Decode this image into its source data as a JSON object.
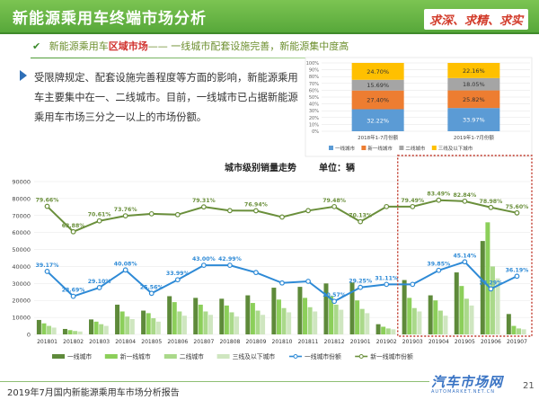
{
  "header": {
    "title": "新能源乘用车终端市场分析",
    "slogan": "求深、求精、求实"
  },
  "subtitle": {
    "part_a": "新能源乘用车",
    "part_b": "区域市场",
    "part_c": "—— 一线城市配套设施完善，新能源集中度高"
  },
  "bullet": {
    "text": "受限牌规定、配套设施完善程度等方面的影响，新能源乘用车主要集中在一、二线城市。目前，一线城市已占据新能源乘用车市场三分之一以上的市场份额。"
  },
  "footer": {
    "report": "2019年7月国内新能源乘用车市场分析报告",
    "logo": "汽车市场网",
    "logo_sub": "AUTOMARKET.NET.CN",
    "page": "21"
  },
  "colors": {
    "tier1": "#5e8a3a",
    "new_tier1": "#8ccf5a",
    "tier2": "#aad98a",
    "tier3": "#cfe6c0",
    "share_tier1": "#2e8ad6",
    "share_new": "#6a8f3b",
    "mini_tier1": "#5b9bd5",
    "mini_new": "#ed7d31",
    "mini_tier2": "#a5a5a5",
    "mini_tier3": "#ffc000",
    "highlight": "#c0392b"
  },
  "chart_data": [
    {
      "type": "bar",
      "stacked": true,
      "percent": true,
      "categories": [
        "2018年1-7月份额",
        "2019年1-7月份额"
      ],
      "ylim": [
        0,
        100
      ],
      "yticks": [
        "0%",
        "10%",
        "20%",
        "30%",
        "40%",
        "50%",
        "60%",
        "70%",
        "80%",
        "90%",
        "100%"
      ],
      "series": [
        {
          "name": "一线城市",
          "values": [
            32.22,
            33.97
          ],
          "labels": [
            "32.22%",
            "33.97%"
          ]
        },
        {
          "name": "新一线城市",
          "values": [
            27.4,
            25.82
          ],
          "labels": [
            "27.40%",
            "25.82%"
          ]
        },
        {
          "name": "二线城市",
          "values": [
            15.69,
            18.05
          ],
          "labels": [
            "15.69%",
            "18.05%"
          ]
        },
        {
          "name": "三线及以下城市",
          "values": [
            24.7,
            22.16
          ],
          "labels": [
            "24.70%",
            "22.16%"
          ]
        }
      ],
      "legend_position": "bottom"
    },
    {
      "type": "bar",
      "title": "城市级别销量走势",
      "unit_label": "单位：辆",
      "categories": [
        "201801",
        "201802",
        "201803",
        "201804",
        "201805",
        "201806",
        "201807",
        "201808",
        "201809",
        "201810",
        "201811",
        "201812",
        "201901",
        "201902",
        "201903",
        "201904",
        "201905",
        "201906",
        "201907"
      ],
      "ylim": [
        0,
        90000
      ],
      "yticks": [
        "0",
        "10000",
        "20000",
        "30000",
        "40000",
        "50000",
        "60000",
        "70000",
        "80000",
        "90000"
      ],
      "series": [
        {
          "name": "一线城市",
          "kind": "bar",
          "values": [
            8500,
            3200,
            8800,
            17500,
            14000,
            22500,
            21500,
            21000,
            23000,
            27500,
            28000,
            30000,
            30500,
            6000,
            32000,
            23000,
            36500,
            55000,
            12000
          ]
        },
        {
          "name": "新一线城市",
          "kind": "bar",
          "values": [
            6500,
            2500,
            7500,
            13500,
            12500,
            19000,
            17500,
            17000,
            18500,
            20500,
            21500,
            22500,
            20000,
            4500,
            21500,
            20000,
            28500,
            66000,
            5000
          ]
        },
        {
          "name": "二线城市",
          "kind": "bar",
          "values": [
            5000,
            2000,
            6000,
            10500,
            9500,
            13500,
            13500,
            13000,
            14000,
            15500,
            16000,
            17500,
            15000,
            3500,
            15500,
            14000,
            21000,
            40000,
            3500
          ]
        },
        {
          "name": "三线及以下城市",
          "kind": "bar",
          "values": [
            4000,
            1700,
            5000,
            9000,
            7500,
            11000,
            11500,
            10500,
            11500,
            13000,
            13500,
            14500,
            12500,
            3000,
            13500,
            11000,
            17000,
            33000,
            3000
          ]
        },
        {
          "name": "一线城市份额",
          "kind": "line",
          "values": [
            39.17,
            23.69,
            29.1,
            40.08,
            25.56,
            33.99,
            43.0,
            42.99,
            38.5,
            32.0,
            33.0,
            20.57,
            29.25,
            31.11,
            31.11,
            39.85,
            45.14,
            28.29,
            36.19
          ],
          "labels": [
            "39.17%",
            "23.69%",
            "29.10%",
            "40.08%",
            "25.56%",
            "33.99%",
            "43.00%",
            "42.99%",
            "",
            "",
            "",
            "20.57%",
            "29.25%",
            "31.11%",
            "",
            "39.85%",
            "45.14%",
            "28.29%",
            "36.19%"
          ]
        },
        {
          "name": "新一线城市份额",
          "kind": "line",
          "values": [
            79.66,
            63.88,
            70.61,
            73.76,
            75.0,
            74.5,
            79.31,
            77.0,
            76.94,
            73.0,
            77.0,
            79.48,
            70.13,
            79.49,
            79.49,
            83.49,
            82.84,
            78.98,
            75.6
          ],
          "labels": [
            "79.66%",
            "63.88%",
            "70.61%",
            "73.76%",
            "",
            "",
            "79.31%",
            "",
            "76.94%",
            "",
            "",
            "79.48%",
            "70.13%",
            "",
            "79.49%",
            "83.49%",
            "82.84%",
            "78.98%",
            "75.60%"
          ]
        }
      ],
      "legend_position": "bottom",
      "highlight_range": [
        "201903",
        "201907"
      ]
    }
  ]
}
